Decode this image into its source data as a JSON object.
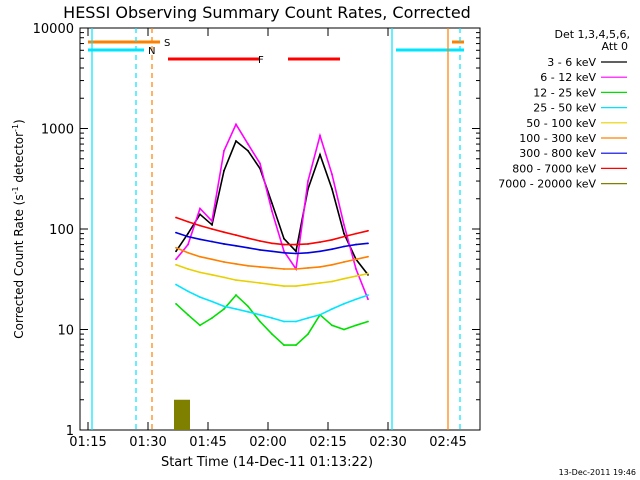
{
  "chart_data": {
    "type": "line",
    "title": "HESSI Observing Summary Count Rates, Corrected",
    "xlabel": "Start Time (14-Dec-11 01:13:22)",
    "ylabel": "Corrected Count Rate (s",
    "ylabel_exp": "-1",
    "ylabel_mid": " detector",
    "ylabel_end": ")",
    "y_scale": "log",
    "ylim": [
      1,
      10000
    ],
    "xlim": [
      "01:13",
      "02:53"
    ],
    "x_ticks": [
      "01:15",
      "01:30",
      "01:45",
      "02:00",
      "02:15",
      "02:30",
      "02:45"
    ],
    "y_ticks": [
      "1",
      "10",
      "100",
      "1000",
      "10000"
    ],
    "legend_title": [
      "Det 1,3,4,5,6,",
      "Att 0"
    ],
    "series": [
      {
        "name": "3 - 6 keV",
        "color": "#000000",
        "x": [
          "01:37",
          "01:40",
          "01:43",
          "01:46",
          "01:49",
          "01:52",
          "01:55",
          "01:58",
          "02:01",
          "02:04",
          "02:07",
          "02:10",
          "02:13",
          "02:16",
          "02:19",
          "02:22",
          "02:25"
        ],
        "values": [
          60,
          90,
          140,
          110,
          380,
          750,
          600,
          400,
          180,
          80,
          60,
          250,
          550,
          250,
          90,
          50,
          35
        ]
      },
      {
        "name": "6 - 12 keV",
        "color": "#ff00ff",
        "x": [
          "01:37",
          "01:40",
          "01:43",
          "01:46",
          "01:49",
          "01:52",
          "01:55",
          "01:58",
          "02:01",
          "02:04",
          "02:07",
          "02:10",
          "02:13",
          "02:16",
          "02:19",
          "02:22",
          "02:25"
        ],
        "values": [
          50,
          70,
          160,
          120,
          600,
          1100,
          700,
          450,
          150,
          60,
          40,
          300,
          850,
          350,
          110,
          40,
          20
        ]
      },
      {
        "name": "12 - 25 keV",
        "color": "#00e000",
        "x": [
          "01:37",
          "01:40",
          "01:43",
          "01:46",
          "01:49",
          "01:52",
          "01:55",
          "01:58",
          "02:01",
          "02:04",
          "02:07",
          "02:10",
          "02:13",
          "02:16",
          "02:19",
          "02:22",
          "02:25"
        ],
        "values": [
          18,
          14,
          11,
          13,
          16,
          22,
          17,
          12,
          9,
          7,
          7,
          9,
          14,
          11,
          10,
          11,
          12
        ]
      },
      {
        "name": "25 - 50 keV",
        "color": "#00e5ff",
        "x": [
          "01:37",
          "01:40",
          "01:43",
          "01:46",
          "01:49",
          "01:52",
          "01:55",
          "01:58",
          "02:01",
          "02:04",
          "02:07",
          "02:10",
          "02:13",
          "02:16",
          "02:19",
          "02:22",
          "02:25"
        ],
        "values": [
          28,
          24,
          21,
          19,
          17,
          16,
          15,
          14,
          13,
          12,
          12,
          13,
          14,
          16,
          18,
          20,
          22
        ]
      },
      {
        "name": "50 - 100 keV",
        "color": "#e8d000",
        "x": [
          "01:37",
          "01:40",
          "01:43",
          "01:46",
          "01:49",
          "01:52",
          "01:55",
          "01:58",
          "02:01",
          "02:04",
          "02:07",
          "02:10",
          "02:13",
          "02:16",
          "02:19",
          "02:22",
          "02:25"
        ],
        "values": [
          44,
          40,
          37,
          35,
          33,
          31,
          30,
          29,
          28,
          27,
          27,
          28,
          29,
          30,
          32,
          34,
          36
        ]
      },
      {
        "name": "100 - 300 keV",
        "color": "#ff8000",
        "x": [
          "01:37",
          "01:40",
          "01:43",
          "01:46",
          "01:49",
          "01:52",
          "01:55",
          "01:58",
          "02:01",
          "02:04",
          "02:07",
          "02:10",
          "02:13",
          "02:16",
          "02:19",
          "02:22",
          "02:25"
        ],
        "values": [
          65,
          58,
          53,
          50,
          47,
          45,
          43,
          42,
          41,
          40,
          40,
          41,
          42,
          44,
          47,
          50,
          53
        ]
      },
      {
        "name": "300 - 800 keV",
        "color": "#0000e0",
        "x": [
          "01:37",
          "01:40",
          "01:43",
          "01:46",
          "01:49",
          "01:52",
          "01:55",
          "01:58",
          "02:01",
          "02:04",
          "02:07",
          "02:10",
          "02:13",
          "02:16",
          "02:19",
          "02:22",
          "02:25"
        ],
        "values": [
          92,
          84,
          79,
          75,
          71,
          68,
          65,
          62,
          60,
          58,
          57,
          58,
          60,
          63,
          67,
          70,
          72
        ]
      },
      {
        "name": "800 - 7000 keV",
        "color": "#ff0000",
        "x": [
          "01:37",
          "01:40",
          "01:43",
          "01:46",
          "01:49",
          "01:52",
          "01:55",
          "01:58",
          "02:01",
          "02:04",
          "02:07",
          "02:10",
          "02:13",
          "02:16",
          "02:19",
          "02:22",
          "02:25"
        ],
        "values": [
          130,
          118,
          108,
          100,
          93,
          87,
          81,
          76,
          72,
          70,
          70,
          71,
          74,
          78,
          84,
          90,
          96
        ]
      },
      {
        "name": "7000 - 20000 keV",
        "color": "#808000",
        "x": [
          "01:37",
          "01:38",
          "01:39",
          "01:40"
        ],
        "values": [
          2,
          2,
          2,
          2
        ]
      }
    ],
    "flag_labels": [
      "S",
      "N",
      "F"
    ],
    "timestamp": "13-Dec-2011 19:46",
    "grid": false,
    "legend_position": "right"
  }
}
